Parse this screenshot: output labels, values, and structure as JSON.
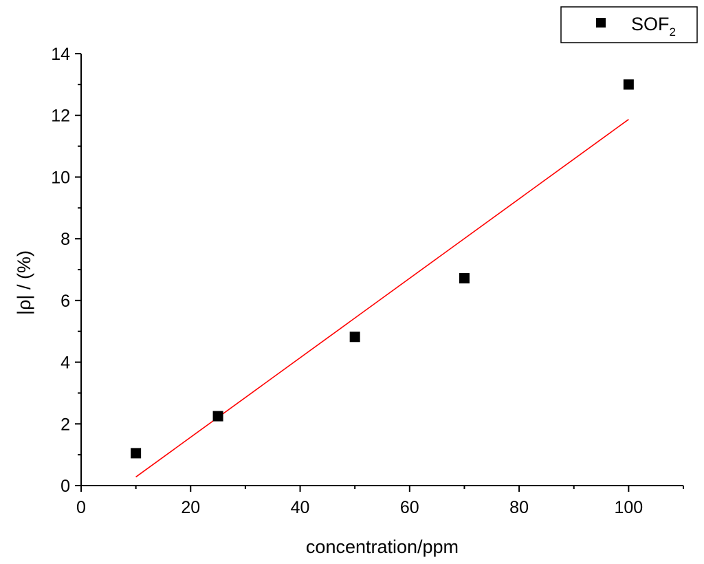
{
  "chart_data": {
    "type": "scatter",
    "title": "",
    "xlabel": "concentration/ppm",
    "ylabel": "|ρ| / (%)",
    "xlim": [
      0,
      110
    ],
    "ylim": [
      0,
      14
    ],
    "x_ticks": [
      0,
      20,
      40,
      60,
      80,
      100
    ],
    "y_ticks": [
      0,
      2,
      4,
      6,
      8,
      10,
      12,
      14
    ],
    "grid": false,
    "legend_position": "top-right",
    "series": [
      {
        "name": "SOF2",
        "name_main": "SOF",
        "name_sub": "2",
        "marker": "square",
        "color": "#000000",
        "x": [
          10,
          25,
          50,
          70,
          100
        ],
        "y": [
          1.05,
          2.25,
          4.82,
          6.72,
          13.0
        ]
      }
    ],
    "fit_line": {
      "color": "#ff0000",
      "x": [
        10,
        100
      ],
      "y": [
        0.28,
        11.87
      ]
    }
  }
}
